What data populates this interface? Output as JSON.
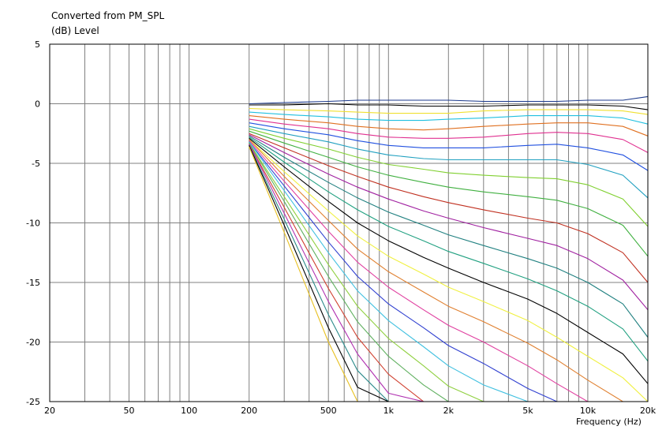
{
  "chart_data": {
    "type": "line",
    "title": "Converted from PM_SPL",
    "ylabel": "(dB)  Level",
    "xlabel": "Frequency  (Hz)",
    "x_scale": "log",
    "xlim": [
      20,
      20000
    ],
    "ylim": [
      -25,
      5
    ],
    "grid": true,
    "legend": "none",
    "y_ticks": [
      5,
      0,
      -5,
      -10,
      -15,
      -20,
      -25
    ],
    "y_tick_labels": [
      "5",
      "0",
      "-5",
      "-10",
      "-15",
      "-20",
      "-25"
    ],
    "x_ticks": [
      20,
      50,
      100,
      200,
      500,
      1000,
      2000,
      5000,
      10000,
      20000
    ],
    "x_tick_labels": [
      "20",
      "50",
      "100",
      "200",
      "500",
      "1k",
      "2k",
      "5k",
      "10k",
      "20k"
    ],
    "x": [
      200,
      300,
      500,
      700,
      1000,
      1500,
      2000,
      3000,
      5000,
      7000,
      10000,
      15000,
      20000
    ],
    "series": [
      {
        "values": [
          0.0,
          0.1,
          0.2,
          0.3,
          0.3,
          0.3,
          0.3,
          0.2,
          0.2,
          0.2,
          0.3,
          0.3,
          0.6
        ],
        "color": "#1c3a8c"
      },
      {
        "values": [
          -0.1,
          -0.1,
          0.0,
          -0.1,
          -0.1,
          -0.2,
          -0.2,
          -0.2,
          -0.1,
          -0.1,
          -0.1,
          -0.2,
          -0.5
        ],
        "color": "#000000"
      },
      {
        "values": [
          -0.4,
          -0.5,
          -0.6,
          -0.7,
          -0.8,
          -0.8,
          -0.8,
          -0.6,
          -0.5,
          -0.5,
          -0.5,
          -0.6,
          -0.9
        ],
        "color": "#f0e030"
      },
      {
        "values": [
          -0.7,
          -0.9,
          -1.1,
          -1.3,
          -1.4,
          -1.4,
          -1.3,
          -1.2,
          -1.0,
          -1.0,
          -1.0,
          -1.2,
          -1.7
        ],
        "color": "#20c0e0"
      },
      {
        "values": [
          -1.0,
          -1.3,
          -1.6,
          -1.9,
          -2.1,
          -2.2,
          -2.1,
          -1.9,
          -1.7,
          -1.6,
          -1.6,
          -1.9,
          -2.7
        ],
        "color": "#e07020"
      },
      {
        "values": [
          -1.3,
          -1.7,
          -2.1,
          -2.5,
          -2.8,
          -2.9,
          -2.9,
          -2.8,
          -2.5,
          -2.4,
          -2.5,
          -3.0,
          -4.1
        ],
        "color": "#e03090"
      },
      {
        "values": [
          -1.6,
          -2.1,
          -2.6,
          -3.1,
          -3.5,
          -3.7,
          -3.7,
          -3.7,
          -3.5,
          -3.4,
          -3.7,
          -4.3,
          -5.6
        ],
        "color": "#2050e0"
      },
      {
        "values": [
          -1.9,
          -2.5,
          -3.2,
          -3.8,
          -4.3,
          -4.6,
          -4.7,
          -4.7,
          -4.7,
          -4.7,
          -5.1,
          -6.0,
          -7.9
        ],
        "color": "#20a0c0"
      },
      {
        "values": [
          -2.1,
          -2.9,
          -3.8,
          -4.5,
          -5.1,
          -5.5,
          -5.8,
          -6.0,
          -6.2,
          -6.3,
          -6.8,
          -8.0,
          -10.3
        ],
        "color": "#80d030"
      },
      {
        "values": [
          -2.3,
          -3.3,
          -4.5,
          -5.3,
          -6.0,
          -6.6,
          -7.0,
          -7.4,
          -7.8,
          -8.1,
          -8.8,
          -10.2,
          -12.8
        ],
        "color": "#40b040"
      },
      {
        "values": [
          -2.5,
          -3.7,
          -5.2,
          -6.1,
          -7.0,
          -7.8,
          -8.3,
          -8.9,
          -9.6,
          -10.0,
          -10.9,
          -12.5,
          -15.0
        ],
        "color": "#c03020"
      },
      {
        "values": [
          -2.6,
          -4.1,
          -5.9,
          -7.0,
          -8.0,
          -9.0,
          -9.6,
          -10.4,
          -11.3,
          -11.9,
          -13.0,
          -14.8,
          -17.3
        ],
        "color": "#a020a0"
      },
      {
        "values": [
          -2.7,
          -4.5,
          -6.6,
          -7.9,
          -9.1,
          -10.2,
          -11.0,
          -11.9,
          -13.0,
          -13.8,
          -15.0,
          -16.8,
          -19.6
        ],
        "color": "#208080"
      },
      {
        "values": [
          -2.8,
          -4.9,
          -7.4,
          -8.9,
          -10.3,
          -11.5,
          -12.4,
          -13.4,
          -14.7,
          -15.7,
          -17.0,
          -18.9,
          -21.6
        ],
        "color": "#20a080"
      },
      {
        "values": [
          -2.9,
          -5.3,
          -8.2,
          -10.0,
          -11.5,
          -12.9,
          -13.8,
          -15.0,
          -16.4,
          -17.6,
          -19.2,
          -21.0,
          -23.5
        ],
        "color": "#000000"
      },
      {
        "values": [
          -3.0,
          -5.7,
          -9.0,
          -11.1,
          -12.8,
          -14.3,
          -15.4,
          -16.6,
          -18.2,
          -19.6,
          -21.2,
          -23.0,
          -25.0
        ],
        "color": "#f0f040"
      },
      {
        "values": [
          -3.0,
          -6.1,
          -9.8,
          -12.2,
          -14.1,
          -15.8,
          -17.0,
          -18.3,
          -20.1,
          -21.5,
          -23.2,
          -25.0,
          -25.0
        ],
        "color": "#e08030"
      },
      {
        "values": [
          -3.1,
          -6.5,
          -10.7,
          -13.3,
          -15.4,
          -17.3,
          -18.6,
          -20.0,
          -22.0,
          -23.5,
          -25.0,
          -25.0,
          -25.0
        ],
        "color": "#e040a0"
      },
      {
        "values": [
          -3.2,
          -6.9,
          -11.6,
          -14.5,
          -16.8,
          -18.8,
          -20.3,
          -21.8,
          -23.9,
          -25.0,
          -25.0,
          -25.0,
          -25.0
        ],
        "color": "#3040d0"
      },
      {
        "values": [
          -3.2,
          -7.3,
          -12.5,
          -15.7,
          -18.2,
          -20.4,
          -22.0,
          -23.6,
          -25.0,
          -25.0,
          -25.0,
          -25.0,
          -25.0
        ],
        "color": "#40c0e0"
      },
      {
        "values": [
          -3.3,
          -7.8,
          -13.5,
          -17.0,
          -19.7,
          -22.0,
          -23.7,
          -25.0,
          -25.0,
          -25.0,
          -25.0,
          -25.0,
          -25.0
        ],
        "color": "#90d040"
      },
      {
        "values": [
          -3.3,
          -8.2,
          -14.5,
          -18.3,
          -21.2,
          -23.6,
          -25.0,
          -25.0,
          -25.0,
          -25.0,
          -25.0,
          -25.0,
          -25.0
        ],
        "color": "#60b060"
      },
      {
        "values": [
          -3.4,
          -8.7,
          -15.5,
          -19.6,
          -22.7,
          -25.0,
          -25.0,
          -25.0,
          -25.0,
          -25.0,
          -25.0,
          -25.0,
          -25.0
        ],
        "color": "#d04030"
      },
      {
        "values": [
          -3.4,
          -9.2,
          -16.6,
          -21.0,
          -24.3,
          -25.0,
          -25.0,
          -25.0,
          -25.0,
          -25.0,
          -25.0,
          -25.0,
          -25.0
        ],
        "color": "#b030b0"
      },
      {
        "values": [
          -3.5,
          -9.7,
          -17.7,
          -22.4,
          -25.0,
          -25.0,
          -25.0,
          -25.0,
          -25.0,
          -25.0,
          -25.0,
          -25.0,
          -25.0
        ],
        "color": "#2a8a8a"
      },
      {
        "values": [
          -3.5,
          -10.2,
          -18.8,
          -23.8,
          -25.0,
          -25.0,
          -25.0,
          -25.0,
          -25.0,
          -25.0,
          -25.0,
          -25.0,
          -25.0
        ],
        "color": "#000000"
      },
      {
        "values": [
          -3.6,
          -10.8,
          -20.0,
          -25.0,
          -25.0,
          -25.0,
          -25.0,
          -25.0,
          -25.0,
          -25.0,
          -25.0,
          -25.0,
          -25.0
        ],
        "color": "#e8c020"
      }
    ]
  }
}
